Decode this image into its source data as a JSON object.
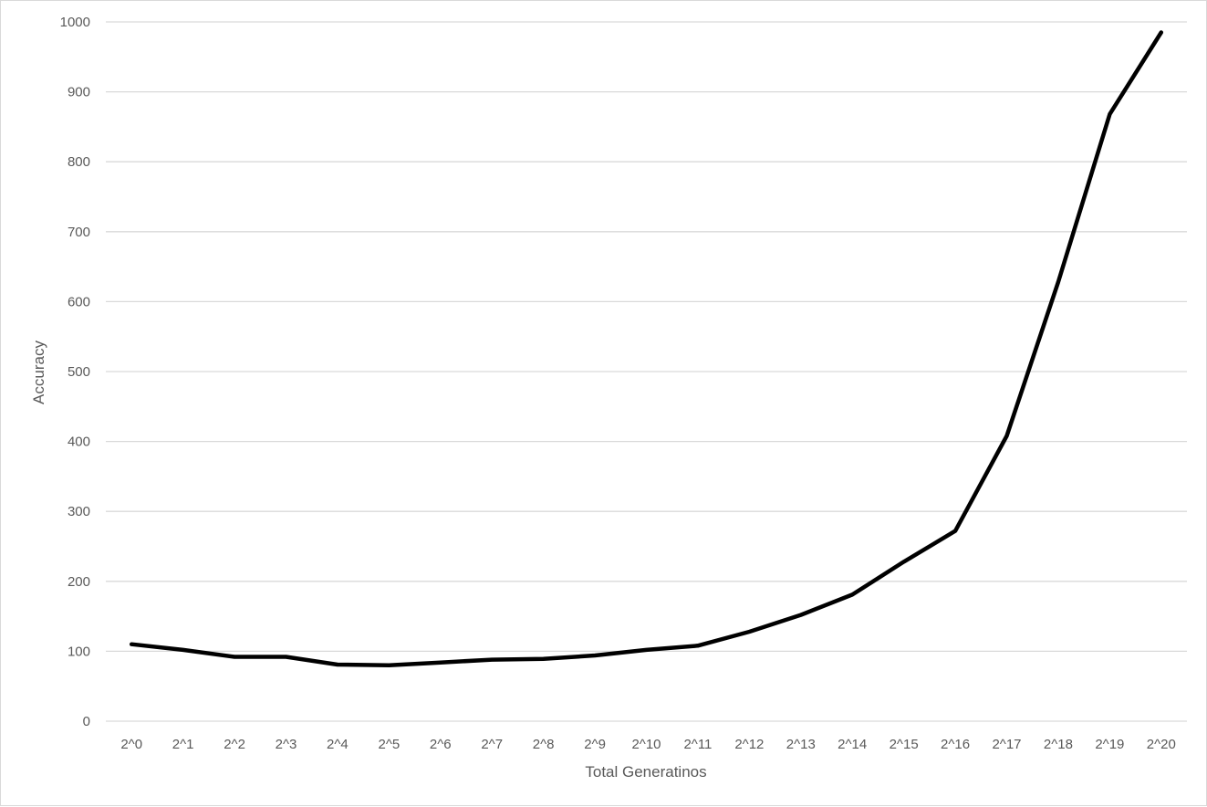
{
  "chart_data": {
    "type": "line",
    "title": "",
    "xlabel": "Total Generatinos",
    "ylabel": "Accuracy",
    "categories": [
      "2^0",
      "2^1",
      "2^2",
      "2^3",
      "2^4",
      "2^5",
      "2^6",
      "2^7",
      "2^8",
      "2^9",
      "2^10",
      "2^11",
      "2^12",
      "2^13",
      "2^14",
      "2^15",
      "2^16",
      "2^17",
      "2^18",
      "2^19",
      "2^20"
    ],
    "series": [
      {
        "name": "Accuracy",
        "color": "#000000",
        "values": [
          110,
          102,
          92,
          92,
          81,
          80,
          84,
          88,
          89,
          94,
          102,
          108,
          128,
          152,
          181,
          228,
          272,
          408,
          628,
          868,
          985
        ]
      }
    ],
    "ylim": [
      0,
      1000
    ],
    "yticks": [
      0,
      100,
      200,
      300,
      400,
      500,
      600,
      700,
      800,
      900,
      1000
    ],
    "grid": true,
    "legend": "none",
    "colors": {
      "gridline": "#d9d9d9",
      "tick_text": "#595959",
      "line": "#000000"
    }
  }
}
